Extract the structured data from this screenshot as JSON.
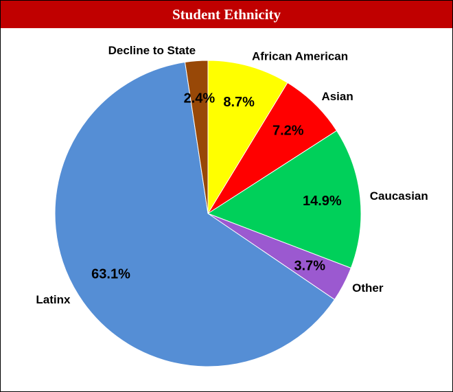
{
  "chart_data": {
    "type": "pie",
    "title": "Student Ethnicity",
    "categories": [
      "African American",
      "Asian",
      "Caucasian",
      "Other",
      "Latinx",
      "Decline to State"
    ],
    "values": [
      8.7,
      7.2,
      14.9,
      3.7,
      63.1,
      2.4
    ],
    "value_labels": [
      "8.7%",
      "7.2%",
      "14.9%",
      "3.7%",
      "63.1%",
      "2.4%"
    ],
    "colors": [
      "#ffff00",
      "#ff0000",
      "#00d05a",
      "#9b59d0",
      "#558ed5",
      "#984807"
    ]
  }
}
